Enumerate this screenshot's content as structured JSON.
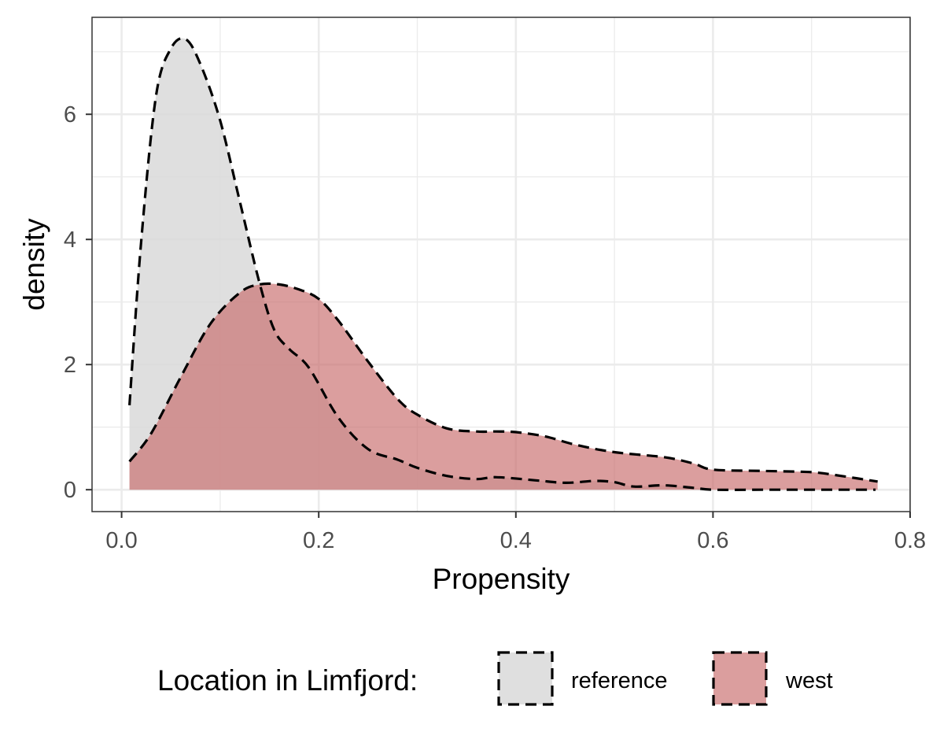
{
  "chart_data": {
    "type": "area",
    "title": "",
    "xlabel": "Propensity",
    "ylabel": "density",
    "xlim": [
      -0.03,
      0.8
    ],
    "ylim": [
      -0.35,
      7.55
    ],
    "x_ticks": [
      0.0,
      0.2,
      0.4,
      0.6,
      0.8
    ],
    "x_tick_labels": [
      "0.0",
      "0.2",
      "0.4",
      "0.6",
      "0.8"
    ],
    "y_ticks": [
      0,
      2,
      4,
      6
    ],
    "y_tick_labels": [
      "0",
      "2",
      "4",
      "6"
    ],
    "grid": true,
    "legend": {
      "title": "Location in Limfjord:",
      "placement": "bottom"
    },
    "series": [
      {
        "name": "reference",
        "color": "#d9d9d9",
        "x": [
          0.008,
          0.02,
          0.035,
          0.05,
          0.065,
          0.08,
          0.1,
          0.12,
          0.14,
          0.155,
          0.17,
          0.19,
          0.22,
          0.25,
          0.28,
          0.3,
          0.33,
          0.36,
          0.38,
          0.42,
          0.45,
          0.48,
          0.5,
          0.52,
          0.55,
          0.58,
          0.6,
          0.65,
          0.7,
          0.765
        ],
        "y": [
          1.35,
          4.0,
          6.3,
          7.05,
          7.2,
          6.8,
          5.9,
          4.6,
          3.3,
          2.55,
          2.25,
          1.95,
          1.15,
          0.65,
          0.48,
          0.35,
          0.22,
          0.17,
          0.2,
          0.15,
          0.11,
          0.14,
          0.12,
          0.05,
          0.07,
          0.03,
          0.0,
          0.0,
          0.0,
          0.0
        ]
      },
      {
        "name": "west",
        "color": "#c86a6a",
        "x": [
          0.008,
          0.03,
          0.06,
          0.09,
          0.12,
          0.14,
          0.16,
          0.18,
          0.2,
          0.22,
          0.25,
          0.28,
          0.3,
          0.33,
          0.36,
          0.38,
          0.4,
          0.43,
          0.46,
          0.5,
          0.55,
          0.58,
          0.6,
          0.65,
          0.7,
          0.73,
          0.767
        ],
        "y": [
          0.45,
          0.9,
          1.8,
          2.65,
          3.15,
          3.28,
          3.28,
          3.2,
          3.05,
          2.7,
          2.05,
          1.45,
          1.2,
          0.98,
          0.93,
          0.93,
          0.92,
          0.85,
          0.72,
          0.6,
          0.52,
          0.42,
          0.32,
          0.3,
          0.28,
          0.22,
          0.13
        ]
      }
    ]
  }
}
